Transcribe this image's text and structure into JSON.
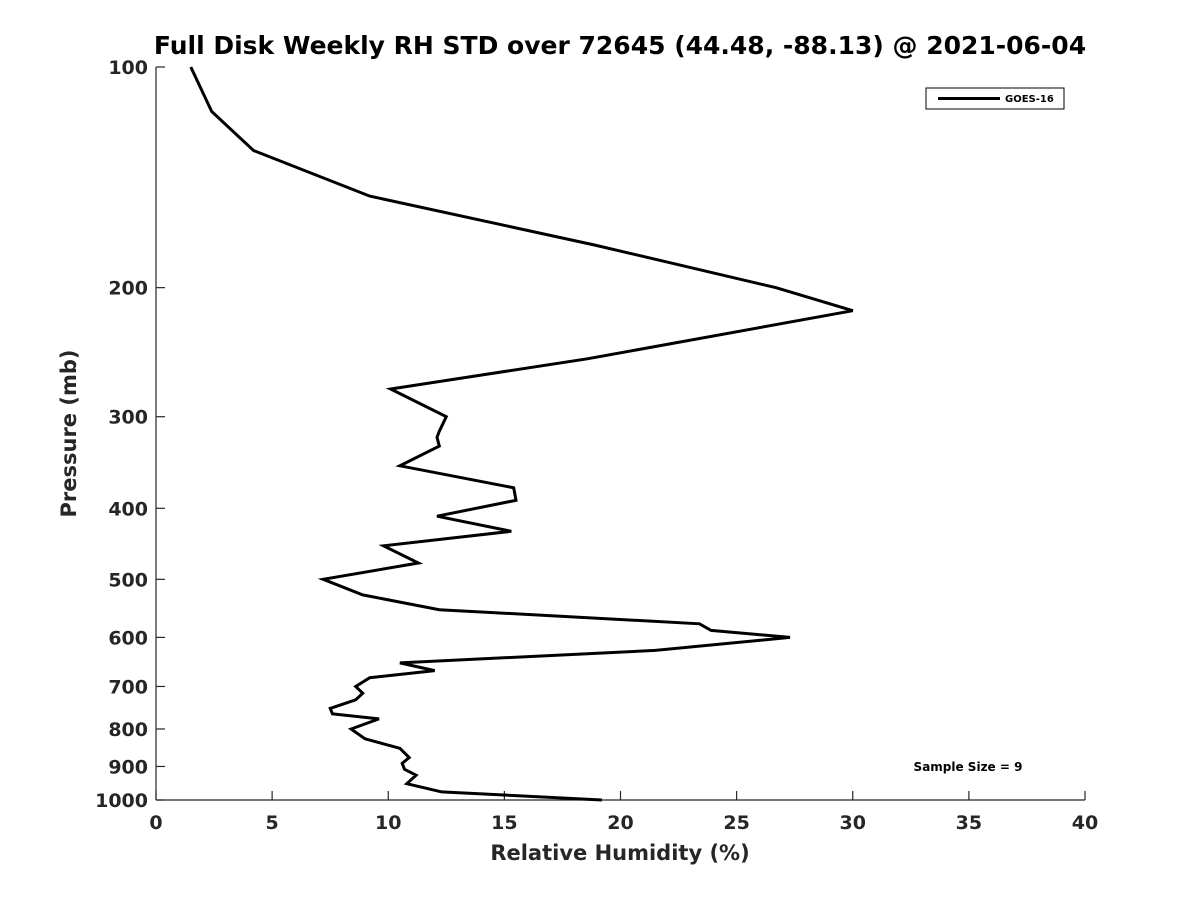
{
  "chart_data": {
    "type": "line",
    "title": "Full Disk Weekly RH STD over 72645 (44.48, -88.13) @ 2021-06-04",
    "xlabel": "Relative Humidity (%)",
    "ylabel": "Pressure (mb)",
    "xlim": [
      0,
      40
    ],
    "ylim": [
      100,
      1000
    ],
    "y_scale": "log",
    "y_inverted": true,
    "x_ticks": [
      0,
      5,
      10,
      15,
      20,
      25,
      30,
      35,
      40
    ],
    "y_ticks": [
      100,
      200,
      300,
      400,
      500,
      600,
      700,
      800,
      900,
      1000
    ],
    "grid": false,
    "legend_position": "top-right",
    "series": [
      {
        "name": "GOES-16",
        "color": "#000000",
        "x": [
          1.5,
          2.4,
          4.2,
          9.2,
          18.9,
          26.7,
          30.0,
          18.6,
          10.1,
          12.5,
          12.2,
          12.1,
          12.2,
          10.5,
          15.4,
          15.5,
          12.1,
          15.3,
          9.8,
          11.3,
          7.2,
          8.9,
          12.2,
          23.4,
          23.9,
          27.3,
          21.5,
          10.5,
          12.0,
          9.2,
          8.6,
          8.9,
          8.6,
          7.5,
          7.6,
          9.6,
          8.4,
          9.0,
          10.5,
          10.9,
          10.6,
          10.7,
          11.2,
          10.8,
          12.3,
          19.2
        ],
        "y": [
          100,
          115,
          130,
          150,
          175,
          200,
          215,
          250,
          275,
          300,
          314,
          320,
          329,
          350,
          375,
          390,
          410,
          430,
          450,
          475,
          500,
          525,
          550,
          575,
          587,
          600,
          625,
          650,
          666,
          681,
          700,
          715,
          730,
          750,
          763,
          775,
          800,
          825,
          850,
          875,
          891,
          908,
          925,
          950,
          975,
          1000
        ]
      }
    ],
    "annotations": [
      "Sample Size = 9"
    ]
  }
}
